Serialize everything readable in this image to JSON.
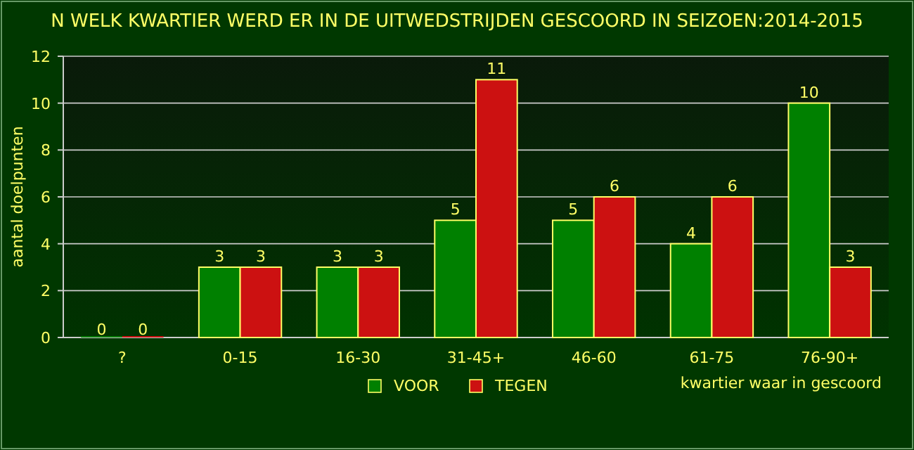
{
  "chart_data": {
    "type": "bar",
    "title": "N WELK KWARTIER WERD ER IN DE UITWEDSTRIJDEN GESCOORD IN SEIZOEN:2014-2015",
    "xlabel": "kwartier waar in gescoord",
    "ylabel": "aantal doelpunten",
    "categories": [
      "?",
      "0-15",
      "16-30",
      "31-45+",
      "46-60",
      "61-75",
      "76-90+"
    ],
    "series": [
      {
        "name": "VOOR",
        "color": "#008000",
        "values": [
          0,
          3,
          3,
          5,
          5,
          4,
          10
        ]
      },
      {
        "name": "TEGEN",
        "color": "#cc1111",
        "values": [
          0,
          3,
          3,
          11,
          6,
          6,
          3
        ]
      }
    ],
    "ylim": [
      0,
      12
    ],
    "yticks": [
      0,
      2,
      4,
      6,
      8,
      10,
      12
    ],
    "grid": "y",
    "legend": "bottom",
    "data_labels": true
  }
}
